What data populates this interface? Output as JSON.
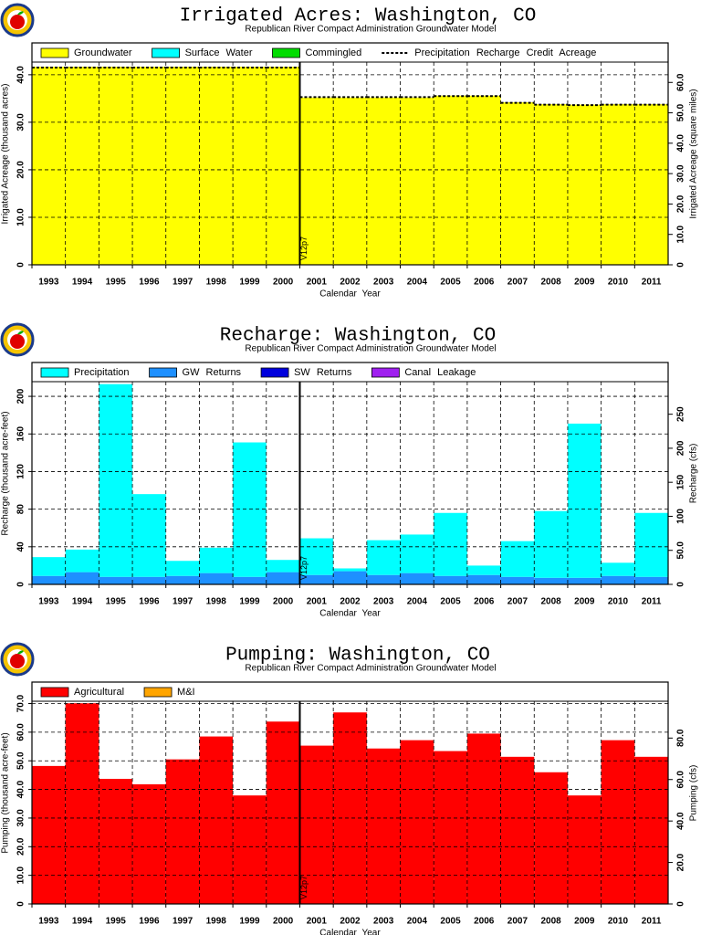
{
  "chart_data": [
    {
      "type": "bar",
      "title": "Irrigated Acres: Washington, CO",
      "subtitle": "Republican River Compact Administration Groundwater Model",
      "xlabel": "Calendar Year",
      "ylabel": "Irrigated Acreage (thousand acres)",
      "y2label": "Irrigated Acreage (square miles)",
      "annotation": "V12p7",
      "categories": [
        "1993",
        "1994",
        "1995",
        "1996",
        "1997",
        "1998",
        "1999",
        "2000",
        "2001",
        "2002",
        "2003",
        "2004",
        "2005",
        "2006",
        "2007",
        "2008",
        "2009",
        "2010",
        "2011"
      ],
      "series": [
        {
          "name": "Groundwater",
          "color": "#ffff00",
          "values": [
            41.7,
            41.7,
            41.7,
            41.7,
            41.7,
            41.7,
            41.7,
            41.7,
            35.2,
            35.2,
            35.2,
            35.2,
            35.6,
            35.6,
            34.2,
            33.8,
            33.7,
            33.8,
            33.8
          ]
        },
        {
          "name": "Surface Water",
          "color": "#00ffff",
          "values": [
            0,
            0,
            0,
            0,
            0,
            0,
            0,
            0,
            0,
            0,
            0,
            0,
            0,
            0,
            0,
            0,
            0,
            0,
            0
          ]
        },
        {
          "name": "Commingled",
          "color": "#00dd00",
          "values": [
            0,
            0,
            0,
            0,
            0,
            0,
            0,
            0,
            0,
            0,
            0,
            0,
            0,
            0,
            0,
            0,
            0,
            0,
            0
          ]
        },
        {
          "name": "Precipitation Recharge Credit Acreage",
          "type": "line",
          "color": "#000000",
          "values": [
            41.5,
            41.5,
            41.5,
            41.5,
            41.5,
            41.5,
            41.5,
            41.5,
            35.3,
            35.3,
            35.3,
            35.3,
            35.5,
            35.5,
            34.1,
            33.7,
            33.6,
            33.7,
            33.7
          ]
        }
      ],
      "ylim": [
        0,
        46.7
      ],
      "yticks": [
        0,
        {
          "value": 10,
          "label": "10.0"
        },
        {
          "value": 20,
          "label": "20.0"
        },
        {
          "value": 30,
          "label": "30.0"
        },
        {
          "value": 40,
          "label": "40.0"
        }
      ],
      "y2lim": [
        0,
        73
      ],
      "y2ticks": [
        0,
        {
          "value": 10,
          "label": "10.0"
        },
        {
          "value": 20,
          "label": "20.0"
        },
        {
          "value": 30,
          "label": "30.0"
        },
        {
          "value": 40,
          "label": "40.0"
        },
        {
          "value": 50,
          "label": "50.0"
        },
        {
          "value": 60,
          "label": "60.0"
        }
      ],
      "grid": true
    },
    {
      "type": "bar",
      "title": "Recharge: Washington, CO",
      "subtitle": "Republican River Compact Administration Groundwater Model",
      "xlabel": "Calendar Year",
      "ylabel": "Recharge (thousand acre-feet)",
      "y2label": "Recharge (cfs)",
      "annotation": "V12p7",
      "categories": [
        "1993",
        "1994",
        "1995",
        "1996",
        "1997",
        "1998",
        "1999",
        "2000",
        "2001",
        "2002",
        "2003",
        "2004",
        "2005",
        "2006",
        "2007",
        "2008",
        "2009",
        "2010",
        "2011"
      ],
      "series": [
        {
          "name": "Precipitation",
          "color": "#00ffff",
          "values": [
            20,
            24,
            205,
            88,
            16,
            27,
            143,
            13,
            39,
            3,
            37,
            41,
            67,
            10,
            38,
            71,
            164,
            14,
            68
          ]
        },
        {
          "name": "GW Returns",
          "color": "#1e90ff",
          "values": [
            9,
            13,
            8,
            8,
            9,
            12,
            8,
            13,
            10,
            14,
            10,
            12,
            9,
            10,
            8,
            7,
            7,
            9,
            8
          ]
        },
        {
          "name": "SW Returns",
          "color": "#0000dd",
          "values": [
            0,
            0,
            0,
            0,
            0,
            0,
            0,
            0,
            0,
            0,
            0,
            0,
            0,
            0,
            0,
            0,
            0,
            0,
            0
          ]
        },
        {
          "name": "Canal Leakage",
          "color": "#a020f0",
          "values": [
            0,
            0,
            0,
            0,
            0,
            0,
            0,
            0,
            0,
            0,
            0,
            0,
            0,
            0,
            0,
            0,
            0,
            0,
            0
          ]
        }
      ],
      "ylim": [
        0,
        236
      ],
      "yticks": [
        0,
        40,
        80,
        120,
        160,
        200
      ],
      "y2lim": [
        0,
        326
      ],
      "y2ticks": [
        0,
        {
          "value": 50,
          "label": "50.0"
        },
        100,
        150,
        200,
        250
      ],
      "grid": true
    },
    {
      "type": "bar",
      "title": "Pumping: Washington, CO",
      "subtitle": "Republican River Compact Administration Groundwater Model",
      "xlabel": "Calendar Year",
      "ylabel": "Pumping (thousand acre-feet)",
      "y2label": "Pumping (cfs)",
      "annotation": "V12p7",
      "categories": [
        "1993",
        "1994",
        "1995",
        "1996",
        "1997",
        "1998",
        "1999",
        "2000",
        "2001",
        "2002",
        "2003",
        "2004",
        "2005",
        "2006",
        "2007",
        "2008",
        "2009",
        "2010",
        "2011"
      ],
      "series": [
        {
          "name": "Agricultural",
          "color": "#ff0000",
          "values": [
            48.2,
            70.1,
            43.7,
            41.8,
            50.5,
            58.5,
            37.9,
            63.7,
            55.3,
            66.9,
            54.3,
            57.2,
            53.4,
            59.5,
            51.4,
            46,
            37.9,
            57.2,
            51.4
          ]
        },
        {
          "name": "M&I",
          "color": "#ffa500",
          "values": [
            0,
            0,
            0,
            0,
            0,
            0,
            0,
            0,
            0,
            0,
            0,
            0,
            0,
            0,
            0,
            0,
            0,
            0,
            0
          ]
        }
      ],
      "ylim": [
        0,
        77.5
      ],
      "yticks": [
        0,
        {
          "value": 10,
          "label": "10.0"
        },
        {
          "value": 20,
          "label": "20.0"
        },
        {
          "value": 30,
          "label": "30.0"
        },
        {
          "value": 40,
          "label": "40.0"
        },
        {
          "value": 50,
          "label": "50.0"
        },
        {
          "value": 60,
          "label": "60.0"
        },
        {
          "value": 70,
          "label": "70.0"
        }
      ],
      "y2lim": [
        0,
        107
      ],
      "y2ticks": [
        0,
        {
          "value": 20,
          "label": "20.0"
        },
        {
          "value": 40,
          "label": "40.0"
        },
        {
          "value": 60,
          "label": "60.0"
        },
        {
          "value": 80,
          "label": "80.0"
        }
      ],
      "grid": true
    }
  ]
}
